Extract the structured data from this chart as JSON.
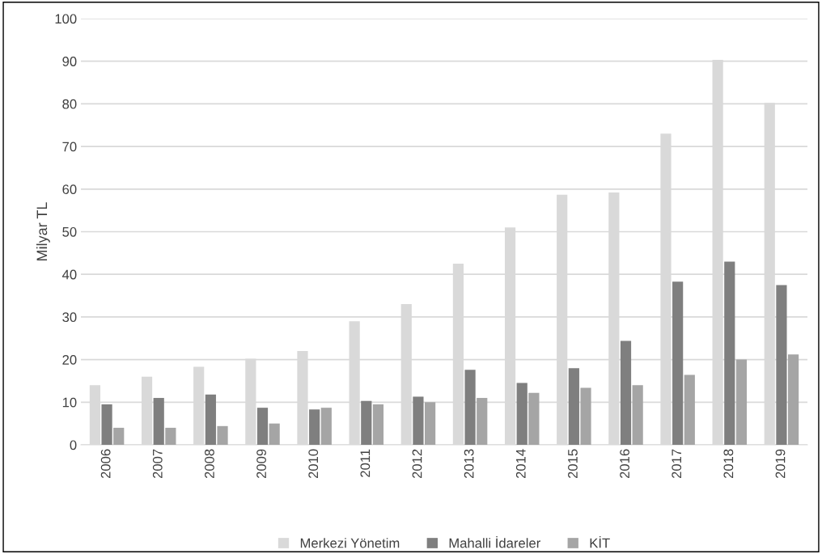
{
  "chart_data": {
    "type": "bar",
    "ylabel": "Milyar TL",
    "categories": [
      "2006",
      "2007",
      "2008",
      "2009",
      "2010",
      "2011",
      "2012",
      "2013",
      "2014",
      "2015",
      "2016",
      "2017",
      "2018",
      "2019"
    ],
    "series": [
      {
        "name": "Merkezi Yönetim",
        "color": "#d9d9d9",
        "values": [
          14,
          16,
          18.3,
          20.2,
          22,
          29,
          33,
          42.5,
          51,
          58.7,
          59.2,
          73,
          90.3,
          80.2
        ]
      },
      {
        "name": "Mahalli İdareler",
        "color": "#7f7f7f",
        "values": [
          9.5,
          11,
          11.8,
          8.7,
          8.3,
          10.3,
          11.3,
          17.6,
          14.5,
          18,
          24.4,
          38.3,
          43,
          37.5
        ]
      },
      {
        "name": "KİT",
        "color": "#a5a5a5",
        "values": [
          4,
          4,
          4.4,
          5,
          8.7,
          9.5,
          10,
          11,
          12.2,
          13.4,
          14,
          16.4,
          20,
          21.2
        ]
      }
    ],
    "ylim": [
      0,
      100
    ],
    "yticks": [
      0,
      10,
      20,
      30,
      40,
      50,
      60,
      70,
      80,
      90,
      100
    ],
    "grid": "y",
    "legend": "bottom"
  }
}
